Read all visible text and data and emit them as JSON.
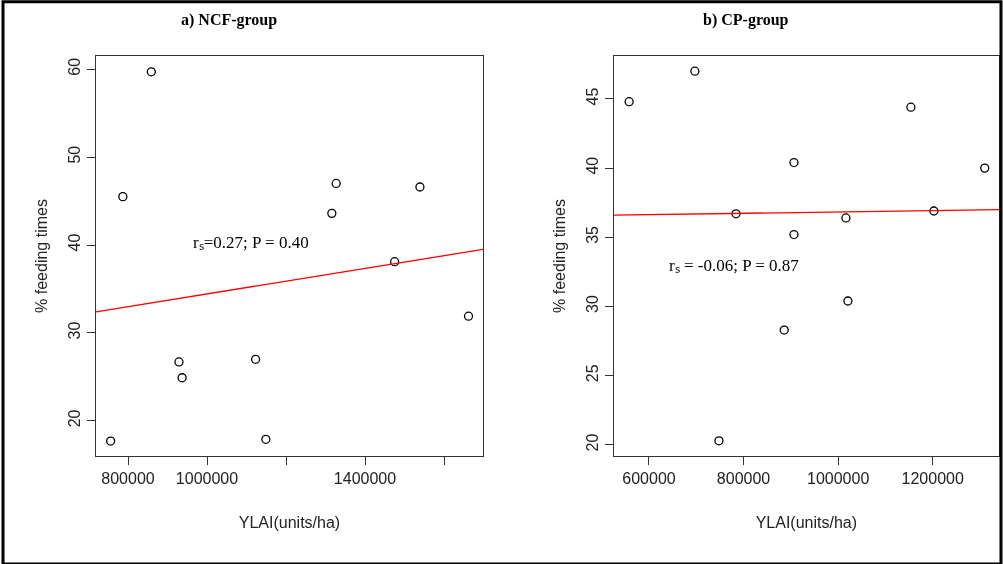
{
  "chart_data": [
    {
      "type": "scatter",
      "title": "a) NCF-group",
      "xlabel": "YLAI(units/ha)",
      "ylabel": "% feeding times",
      "xlim": [
        719000,
        1698700
      ],
      "ylim": [
        16.0,
        61.5
      ],
      "xticks": [
        800000,
        1000000,
        {
          "value": 1200000,
          "label": null
        },
        1400000,
        {
          "value": 1600000,
          "label": null
        }
      ],
      "yticks": [
        20,
        30,
        40,
        50,
        60
      ],
      "marker": "circle",
      "series": [
        {
          "color": "#000000",
          "x": [
            756000,
            787000,
            859000,
            929000,
            937000,
            1123000,
            1149000,
            1316000,
            1327000,
            1475000,
            1539000,
            1662000
          ],
          "values": [
            17.7,
            45.5,
            59.7,
            26.7,
            24.9,
            27.0,
            17.9,
            43.6,
            47.0,
            38.1,
            46.6,
            31.9
          ]
        },
        {
          "type": "line",
          "color": "#ff0000",
          "marker": "none",
          "x": [
            719000,
            1698700
          ],
          "values": [
            32.4,
            39.5
          ]
        }
      ],
      "annotations": [
        "rₛ=0.27; P = 0.40"
      ]
    },
    {
      "type": "scatter",
      "title": "b) CP-group",
      "xlabel": "YLAI(units/ha)",
      "ylabel": "% feeding times",
      "xlim": [
        525400,
        1340200
      ],
      "ylim": [
        19.2,
        48.1
      ],
      "xticks": [
        600000,
        800000,
        1000000,
        1200000
      ],
      "yticks": [
        20,
        25,
        30,
        35,
        40,
        45
      ],
      "marker": "circle",
      "series": [
        {
          "color": "#000000",
          "x": [
            558000,
            697000,
            748000,
            784000,
            886000,
            906600,
            906600,
            1016500,
            1020700,
            1153900,
            1202500,
            1310000
          ],
          "values": [
            44.8,
            47.0,
            20.3,
            36.7,
            28.3,
            40.4,
            35.2,
            36.4,
            30.4,
            44.4,
            36.9,
            40.0
          ]
        },
        {
          "type": "line",
          "color": "#ff0000",
          "marker": "none",
          "x": [
            525400,
            1340200
          ],
          "values": [
            36.6,
            37.0
          ]
        }
      ],
      "annotations": [
        "rₛ = -0.06; P = 0.87"
      ]
    }
  ]
}
